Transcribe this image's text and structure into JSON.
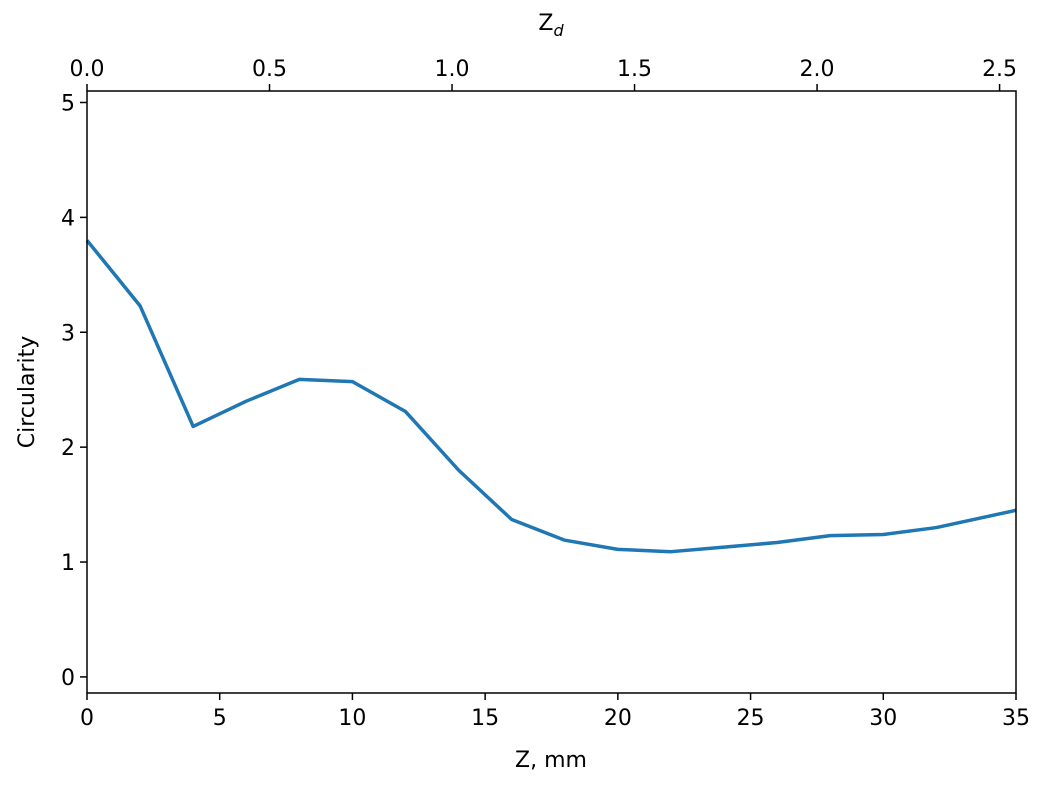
{
  "chart_data": {
    "type": "line",
    "xlabel": "Z, mm",
    "ylabel": "Circularity",
    "x2label": [
      "Z",
      "d"
    ],
    "x": [
      0,
      2,
      4,
      6,
      8,
      10,
      12,
      14,
      16,
      18,
      20,
      22,
      24,
      26,
      28,
      30,
      32,
      35
    ],
    "series": [
      {
        "color": "#1f77b4",
        "values": [
          3.8,
          3.23,
          2.18,
          2.4,
          2.59,
          2.57,
          2.31,
          1.8,
          1.37,
          1.19,
          1.11,
          1.09,
          1.13,
          1.17,
          1.23,
          1.24,
          1.3,
          1.45
        ]
      }
    ],
    "xlim": [
      0,
      35
    ],
    "xticks": [
      0,
      5,
      10,
      15,
      20,
      25,
      30,
      35
    ],
    "ylim": [
      -0.14,
      5.1
    ],
    "yticks": [
      0,
      1,
      2,
      3,
      4,
      5
    ],
    "x2lim": [
      0,
      2.545
    ],
    "x2ticks": [
      {
        "value": 0,
        "label": "0.0"
      },
      0.5,
      {
        "value": 1,
        "label": "1.0"
      },
      1.5,
      {
        "value": 2,
        "label": "2.0"
      },
      2.5
    ],
    "grid": false
  }
}
